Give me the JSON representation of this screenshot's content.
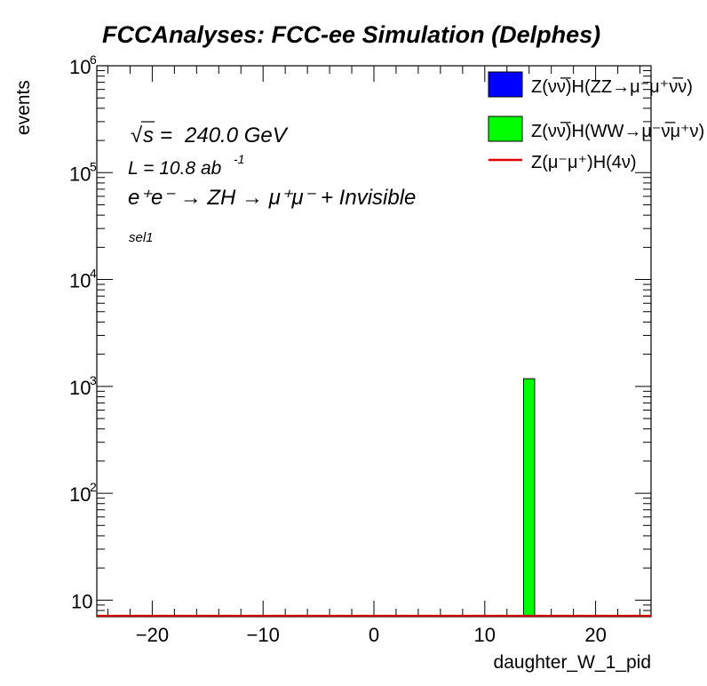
{
  "chart_data": {
    "type": "bar",
    "title": "FCCAnalyses: FCC-ee Simulation (Delphes)",
    "xlabel": "daughter_W_1_pid",
    "ylabel": "events",
    "xlim": [
      -25,
      25
    ],
    "ylim": [
      7,
      1000000
    ],
    "ylog": true,
    "x_ticks": [
      -20,
      -10,
      0,
      10,
      20
    ],
    "x_tick_labels": [
      "−20",
      "−10",
      "0",
      "10",
      "20"
    ],
    "y_ticks": [
      10,
      100,
      1000,
      10000,
      100000,
      1000000
    ],
    "y_tick_labels": [
      {
        "base": "10",
        "exp": ""
      },
      {
        "base": "10",
        "exp": "2"
      },
      {
        "base": "10",
        "exp": "3"
      },
      {
        "base": "10",
        "exp": "4"
      },
      {
        "base": "10",
        "exp": "5"
      },
      {
        "base": "10",
        "exp": "6"
      }
    ],
    "annotations": {
      "sqrt_s": "240.0 GeV",
      "lumi": "L = 10.8 ab",
      "lumi_exp": "-1",
      "process": "e⁺e⁻ → ZH → μ⁺μ⁻ + Invisible",
      "selection": "sel1"
    },
    "legend_position": "top-right",
    "series": [
      {
        "name": "Z(νν̅)H(ZZ→μ⁻μ⁺ν̅ν)",
        "style": "fill",
        "color": "#0000ff",
        "bins": []
      },
      {
        "name": "Z(νν̅)H(WW→μ⁻ν̅μ⁺ν)",
        "style": "fill",
        "color": "#00ff00",
        "bins": [
          {
            "x0": 13.5,
            "x1": 14.5,
            "value": 1180
          }
        ]
      },
      {
        "name": "Z(μ⁻μ⁺)H(4ν)",
        "style": "line",
        "color": "#e00000",
        "bins": []
      }
    ]
  }
}
